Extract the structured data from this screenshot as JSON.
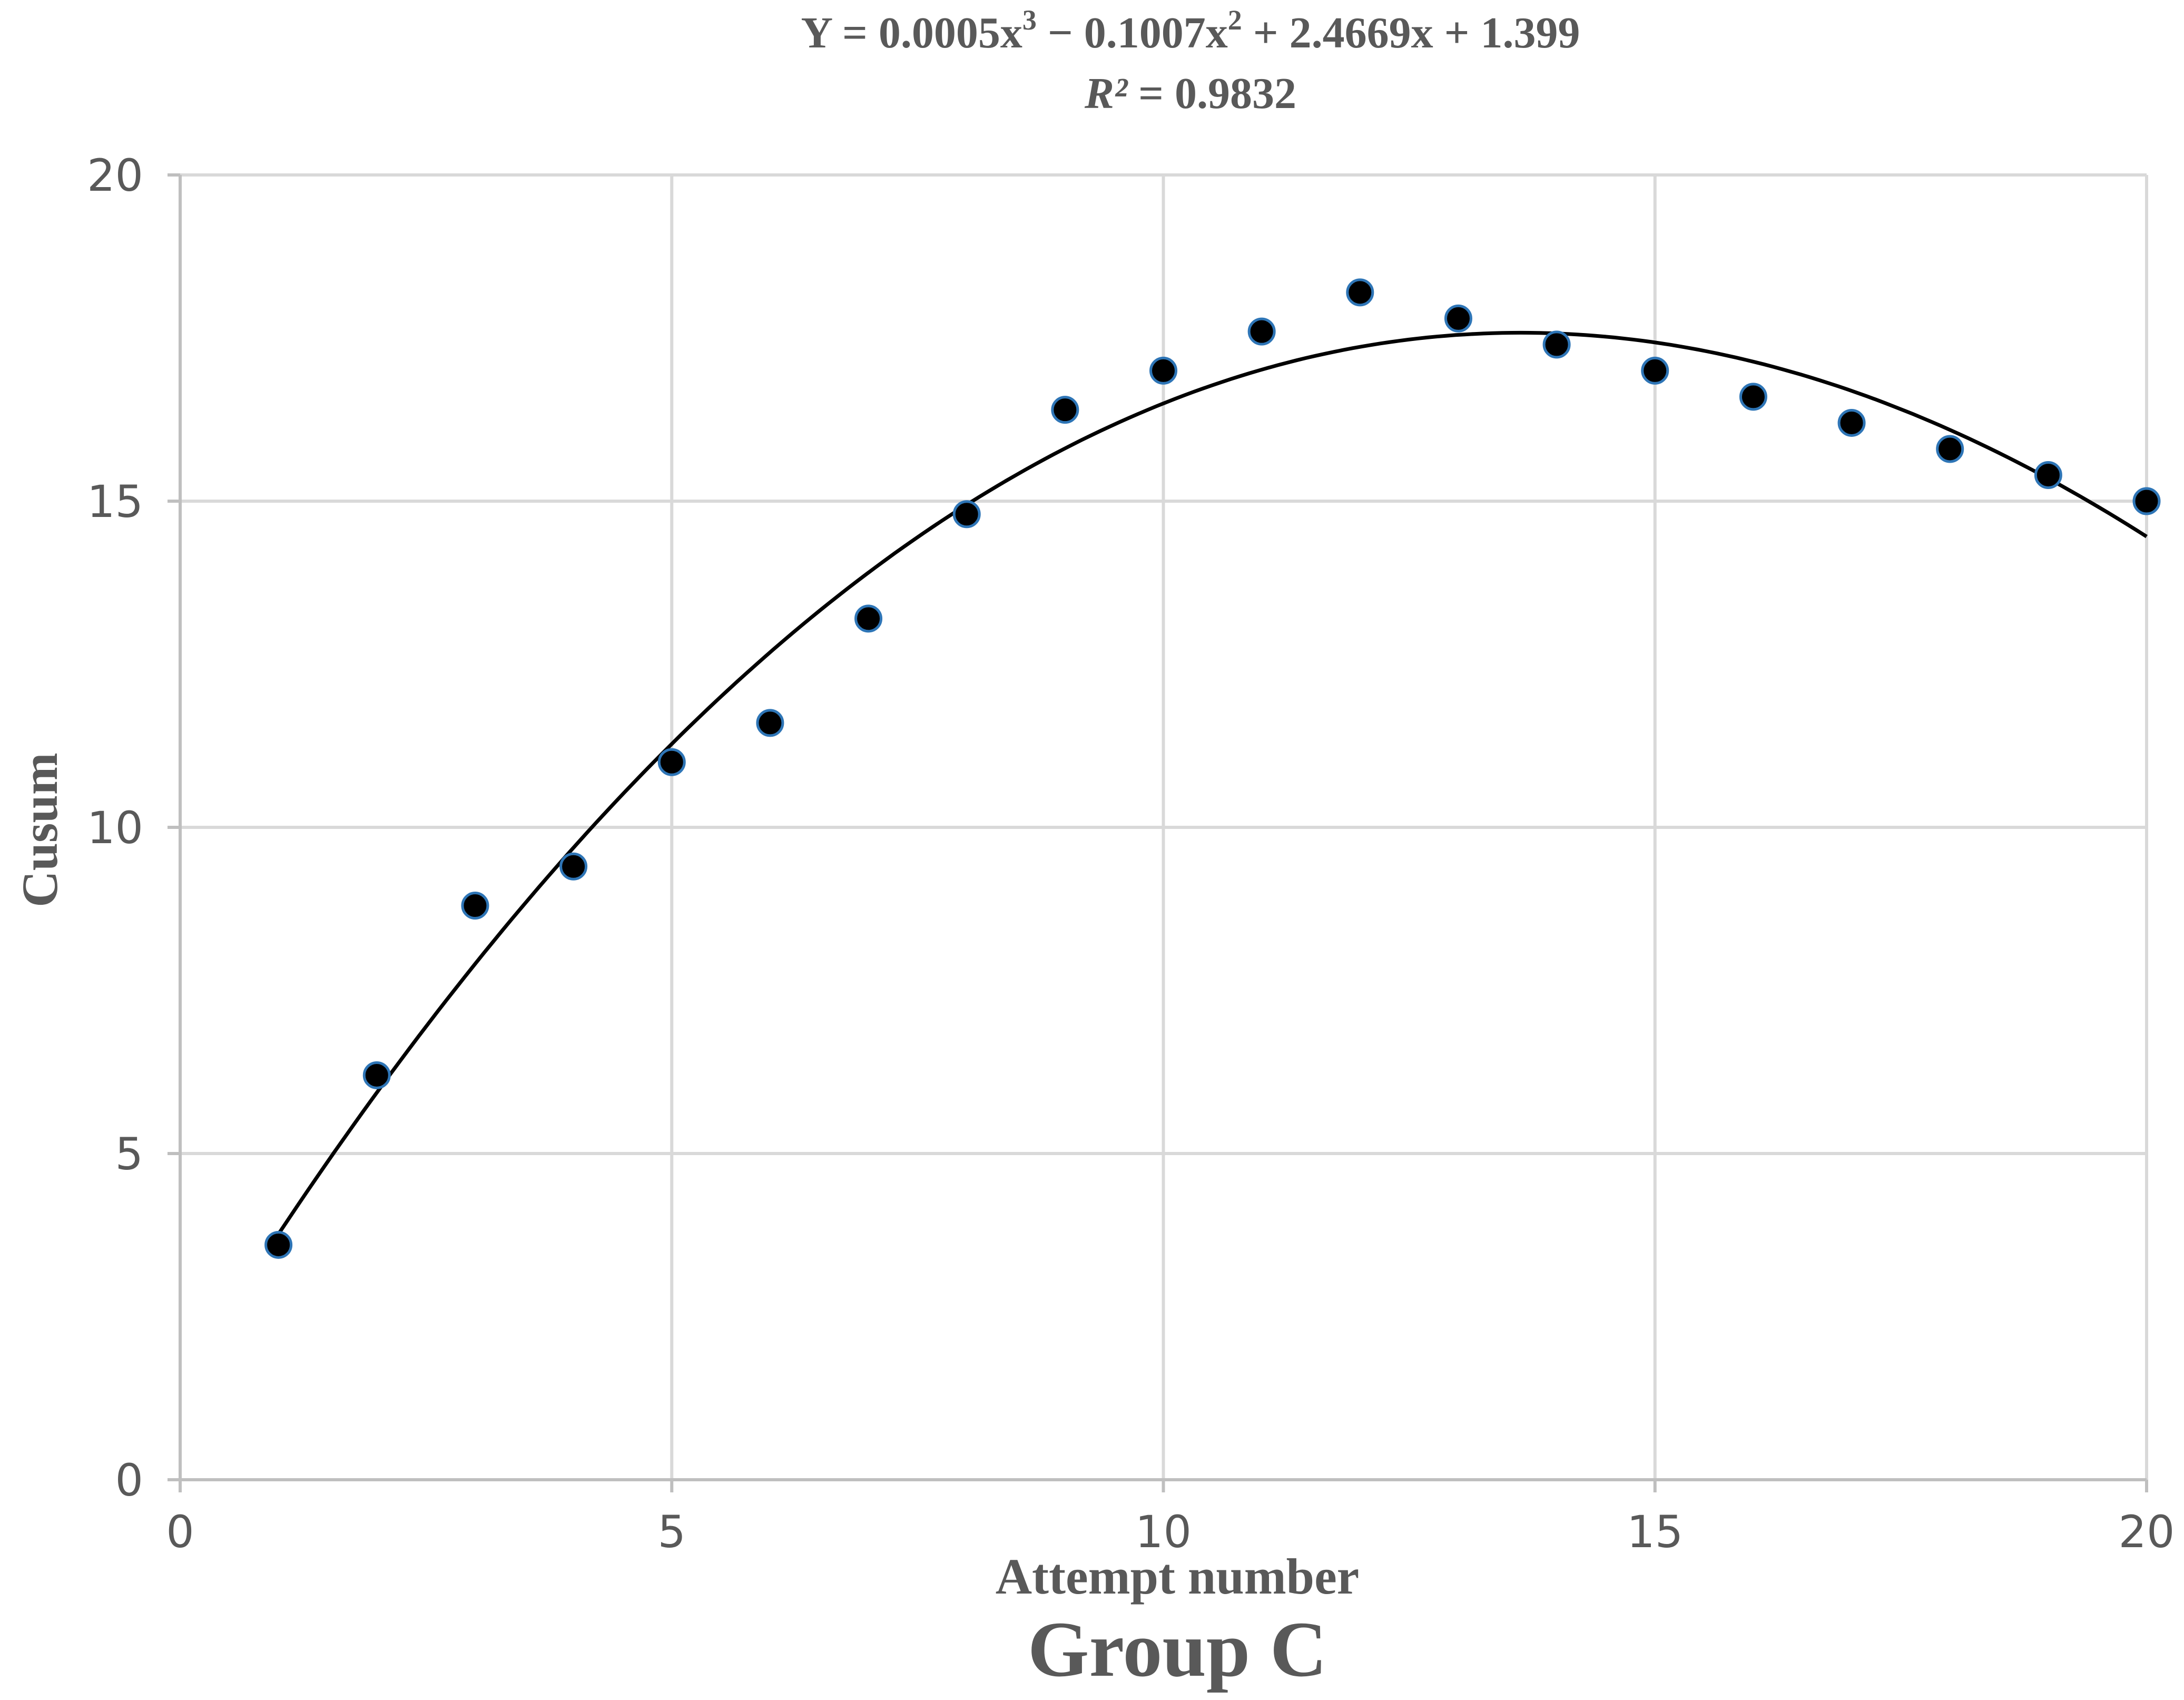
{
  "chart_data": {
    "type": "scatter",
    "title": "Group C",
    "equation": {
      "line1_prefix": "Y = 0.0005x",
      "line1_sup1": "3",
      "line1_mid": " − 0.1007x",
      "line1_sup2": "2",
      "line1_suffix": " + 2.4669x + 1.399",
      "line2_italic": "R²",
      "line2_rest": " = 0.9832"
    },
    "xlabel": "Attempt number",
    "ylabel": "Cusum",
    "xlim": [
      0,
      20
    ],
    "ylim": [
      0,
      20
    ],
    "x_ticks": [
      0,
      5,
      10,
      15,
      20
    ],
    "y_ticks": [
      0,
      5,
      10,
      15,
      20
    ],
    "grid": true,
    "series": [
      {
        "x": [
          1,
          2,
          3,
          4,
          5,
          6,
          7,
          8,
          9,
          10,
          11,
          12,
          13,
          14,
          15,
          16,
          17,
          18,
          19,
          20
        ],
        "y": [
          3.6,
          6.2,
          8.8,
          9.4,
          11.0,
          11.6,
          13.2,
          14.8,
          16.4,
          17.0,
          17.6,
          18.2,
          17.8,
          17.4,
          17.0,
          16.6,
          16.2,
          15.8,
          15.4,
          15.0
        ]
      }
    ],
    "trendline": {
      "type": "polynomial",
      "coefficients": [
        0.0005,
        -0.1007,
        2.4669,
        1.399
      ],
      "x_range": [
        1,
        20
      ]
    },
    "colors": {
      "point_fill": "#000000",
      "point_stroke": "#2e75b6",
      "trendline": "#000000",
      "grid": "#d9d9d9",
      "text": "#595959"
    }
  }
}
